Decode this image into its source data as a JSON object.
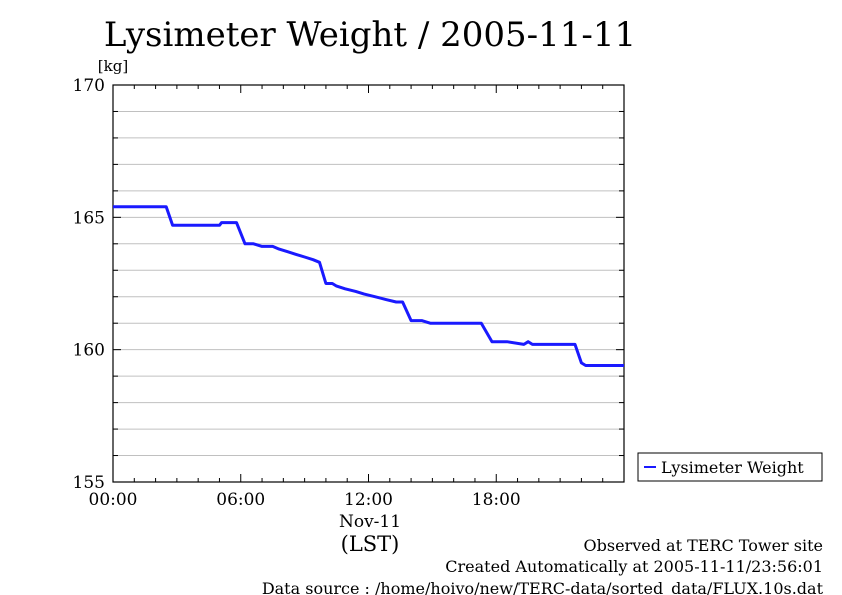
{
  "chart_data": {
    "type": "line",
    "title": "Lysimeter Weight / 2005-11-11",
    "ylabel": "[kg]",
    "xlabel": "(LST)",
    "date_label": "Nov-11",
    "ylim": [
      155,
      170
    ],
    "y_ticks": [
      "170",
      "165",
      "160",
      "155"
    ],
    "y_tick_values": [
      170,
      165,
      160,
      155
    ],
    "y_minor_step": 1,
    "x_ticks": [
      "00:00",
      "06:00",
      "12:00",
      "18:00"
    ],
    "x_tick_values": [
      0,
      6,
      12,
      18
    ],
    "xlim": [
      0,
      24
    ],
    "grid": true,
    "legend_position": "bottom-right-outside",
    "series": [
      {
        "name": "Lysimeter Weight",
        "color": "#1a1aff",
        "x": [
          0.0,
          2.5,
          2.8,
          5.0,
          5.1,
          5.8,
          6.2,
          6.6,
          7.0,
          7.5,
          7.8,
          8.2,
          8.6,
          9.0,
          9.4,
          9.7,
          10.0,
          10.3,
          10.5,
          10.9,
          11.4,
          11.8,
          12.3,
          12.8,
          13.3,
          13.6,
          14.0,
          14.5,
          14.9,
          17.0,
          17.3,
          17.8,
          18.0,
          18.5,
          19.3,
          19.5,
          19.7,
          19.8,
          20.0,
          21.0,
          21.7,
          22.0,
          22.2,
          24.0
        ],
        "y": [
          165.4,
          165.4,
          164.7,
          164.7,
          164.8,
          164.8,
          164.0,
          164.0,
          163.9,
          163.9,
          163.8,
          163.7,
          163.6,
          163.5,
          163.4,
          163.3,
          162.5,
          162.5,
          162.4,
          162.3,
          162.2,
          162.1,
          162.0,
          161.9,
          161.8,
          161.8,
          161.1,
          161.1,
          161.0,
          161.0,
          161.0,
          160.3,
          160.3,
          160.3,
          160.2,
          160.3,
          160.2,
          160.2,
          160.2,
          160.2,
          160.2,
          159.5,
          159.4,
          159.4
        ]
      }
    ]
  },
  "footer": {
    "line1": "Observed at TERC Tower site",
    "line2": "Created Automatically at 2005-11-11/23:56:01",
    "line3": "Data source : /home/hoivo/new/TERC-data/sorted_data/FLUX.10s.dat"
  }
}
